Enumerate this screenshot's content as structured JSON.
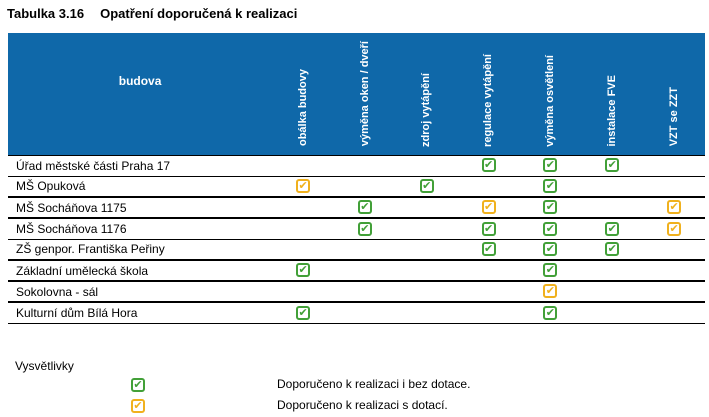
{
  "title": {
    "number": "Tabulka 3.16",
    "caption": "Opatření doporučená k realizaci"
  },
  "table": {
    "row_header": "budova",
    "columns": [
      "obálka budovy",
      "výměna oken / dveří",
      "zdroj vytápění",
      "regulace vytápění",
      "výměna osvětlení",
      "instalace FVE",
      "VZT se ZZT"
    ],
    "rows": [
      {
        "name": "Úřad městské části Praha 17",
        "marks": [
          "",
          "",
          "",
          "green",
          "green",
          "green",
          ""
        ]
      },
      {
        "name": "MŠ Opuková",
        "marks": [
          "orange",
          "",
          "green",
          "",
          "green",
          "",
          ""
        ]
      },
      {
        "name": "MŠ Socháňova 1175",
        "marks": [
          "",
          "green",
          "",
          "orange",
          "green",
          "",
          "orange"
        ]
      },
      {
        "name": "MŠ Socháňova 1176",
        "marks": [
          "",
          "green",
          "",
          "green",
          "green",
          "green",
          "orange"
        ]
      },
      {
        "name": "ZŠ genpor. Františka Peřiny",
        "marks": [
          "",
          "",
          "",
          "green",
          "green",
          "green",
          ""
        ]
      },
      {
        "name": "Základní umělecká škola",
        "marks": [
          "green",
          "",
          "",
          "",
          "green",
          "",
          ""
        ]
      },
      {
        "name": "Sokolovna - sál",
        "marks": [
          "",
          "",
          "",
          "",
          "orange",
          "",
          ""
        ]
      },
      {
        "name": "Kulturní dům Bílá Hora",
        "marks": [
          "green",
          "",
          "",
          "",
          "green",
          "",
          ""
        ]
      }
    ]
  },
  "legend": {
    "title": "Vysvětlivky",
    "items": [
      {
        "color": "green",
        "label": "Doporučeno k realizaci i bez dotace."
      },
      {
        "color": "orange",
        "label": "Doporučeno k realizaci s dotací."
      }
    ]
  },
  "icons": {
    "check_glyph": "✔"
  },
  "colors": {
    "header_bg": "#0f68a9",
    "header_text": "#ffffff",
    "green": "#42a038",
    "orange": "#f0b11e"
  }
}
